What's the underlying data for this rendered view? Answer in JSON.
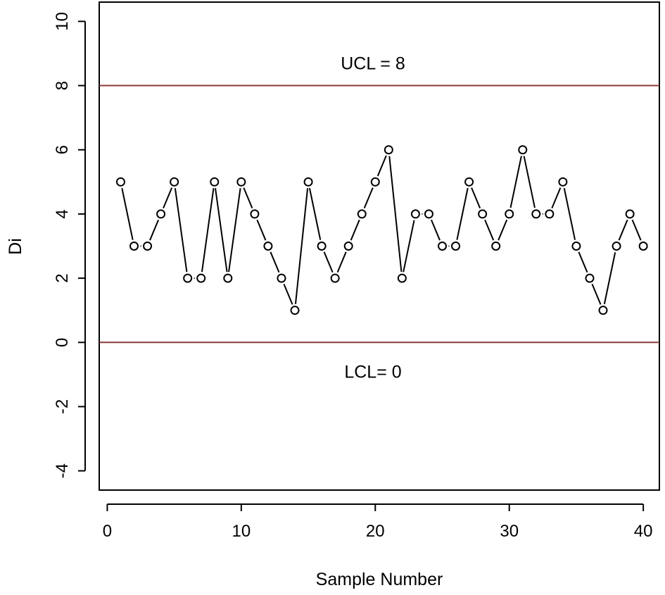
{
  "chart_data": {
    "type": "line",
    "xlabel": "Sample Number",
    "ylabel": "Di",
    "xlim": [
      -0.6,
      41.2
    ],
    "ylim": [
      -4.6,
      10.6
    ],
    "xticks": [
      0,
      10,
      20,
      30,
      40
    ],
    "yticks": [
      -4,
      -2,
      0,
      2,
      4,
      6,
      8,
      10
    ],
    "grid": false,
    "x": [
      1,
      2,
      3,
      4,
      5,
      6,
      7,
      8,
      9,
      10,
      11,
      12,
      13,
      14,
      15,
      16,
      17,
      18,
      19,
      20,
      21,
      22,
      23,
      24,
      25,
      26,
      27,
      28,
      29,
      30,
      31,
      32,
      33,
      34,
      35,
      36,
      37,
      38,
      39,
      40
    ],
    "y": [
      5,
      3,
      3,
      4,
      5,
      2,
      2,
      5,
      2,
      5,
      4,
      3,
      2,
      1,
      5,
      3,
      2,
      3,
      4,
      5,
      6,
      2,
      4,
      4,
      3,
      3,
      5,
      4,
      3,
      4,
      6,
      4,
      4,
      5,
      3,
      2,
      1,
      3,
      4,
      3
    ],
    "control_limits": [
      {
        "label": "UCL = 8",
        "value": 8,
        "color": "#8b3a3a"
      },
      {
        "label": "LCL= 0",
        "value": 0,
        "color": "#8b3a3a"
      }
    ]
  }
}
